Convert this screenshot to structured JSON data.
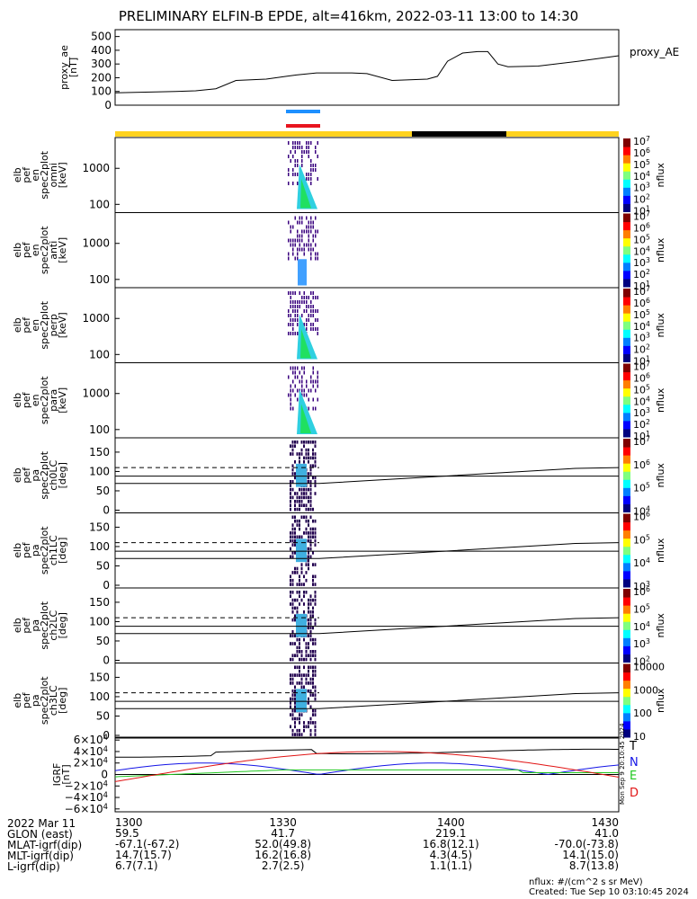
{
  "title": "PRELIMINARY ELFIN-B EPDE, alt=416km, 2022-03-11 13:00 to 14:30",
  "colors": {
    "sunlit": "#ffd21e",
    "shadow": "#000000",
    "blue_bar": "#1e90ff",
    "red_bar": "#e8141e",
    "T": "#000000",
    "N": "#1414e6",
    "E": "#20c820",
    "D": "#e11414"
  },
  "chart_data": [
    {
      "type": "line",
      "name": "proxy_ae",
      "ylabel_lines": [
        "proxy_ae",
        "[nT]"
      ],
      "series_label": "proxy_AE",
      "ylim": [
        0,
        550
      ],
      "yticks": [
        "0",
        "100",
        "200",
        "300",
        "400",
        "500"
      ],
      "x": [
        0,
        0.06,
        0.12,
        0.16,
        0.2,
        0.24,
        0.3,
        0.34,
        0.36,
        0.4,
        0.43,
        0.44,
        0.47,
        0.5,
        0.55,
        0.62,
        0.64,
        0.66,
        0.69,
        0.72,
        0.74,
        0.76,
        0.78,
        0.84,
        0.92,
        1.0
      ],
      "values": [
        90,
        95,
        100,
        105,
        120,
        180,
        190,
        210,
        220,
        235,
        235,
        235,
        235,
        230,
        180,
        190,
        210,
        320,
        380,
        390,
        390,
        300,
        280,
        285,
        320,
        360
      ]
    },
    {
      "type": "heatmap",
      "name": "spec2plot_omni",
      "ylabel_lines": [
        "elb",
        "pef",
        "en",
        "spec2plot",
        "omni",
        "[keV]"
      ],
      "yticks": [
        "100",
        "1000"
      ],
      "cbar_ticks": [
        "10",
        "10",
        "10",
        "10",
        "10",
        "10",
        "10"
      ],
      "cbar_exps": [
        "1",
        "2",
        "3",
        "4",
        "5",
        "6",
        "7"
      ],
      "cbar_label": "nflux"
    },
    {
      "type": "heatmap",
      "name": "spec2plot_anti",
      "ylabel_lines": [
        "elb",
        "pef",
        "en",
        "spec2plot",
        "anti",
        "[keV]"
      ],
      "yticks": [
        "100",
        "1000"
      ],
      "cbar_ticks": [
        "10",
        "10",
        "10",
        "10",
        "10",
        "10",
        "10"
      ],
      "cbar_exps": [
        "1",
        "2",
        "3",
        "4",
        "5",
        "6",
        "7"
      ],
      "cbar_label": "nflux"
    },
    {
      "type": "heatmap",
      "name": "spec2plot_perp",
      "ylabel_lines": [
        "elb",
        "pef",
        "en",
        "spec2plot",
        "perp",
        "[keV]"
      ],
      "yticks": [
        "100",
        "1000"
      ],
      "cbar_ticks": [
        "10",
        "10",
        "10",
        "10",
        "10",
        "10",
        "10"
      ],
      "cbar_exps": [
        "1",
        "2",
        "3",
        "4",
        "5",
        "6",
        "7"
      ],
      "cbar_label": "nflux"
    },
    {
      "type": "heatmap",
      "name": "spec2plot_para",
      "ylabel_lines": [
        "elb",
        "pef",
        "en",
        "spec2plot",
        "para",
        "[keV]"
      ],
      "yticks": [
        "100",
        "1000"
      ],
      "cbar_ticks": [
        "10",
        "10",
        "10",
        "10",
        "10",
        "10",
        "10"
      ],
      "cbar_exps": [
        "1",
        "2",
        "3",
        "4",
        "5",
        "6",
        "7"
      ],
      "cbar_label": "nflux"
    },
    {
      "type": "heatmap",
      "name": "spec2plot_ch0LC",
      "ylabel_lines": [
        "elb",
        "pef",
        "pa",
        "spec2plot",
        "ch0LC",
        "[deg]"
      ],
      "yticks": [
        "0",
        "50",
        "100",
        "150"
      ],
      "cbar_ticks": [
        "10",
        "10",
        "10",
        "10"
      ],
      "cbar_exps": [
        "4",
        "5",
        "6",
        "7"
      ],
      "cbar_label": "nflux"
    },
    {
      "type": "heatmap",
      "name": "spec2plot_ch1LC",
      "ylabel_lines": [
        "elb",
        "pef",
        "pa",
        "spec2plot",
        "ch1LC",
        "[deg]"
      ],
      "yticks": [
        "0",
        "50",
        "100",
        "150"
      ],
      "cbar_ticks": [
        "10",
        "10",
        "10",
        "10"
      ],
      "cbar_exps": [
        "3",
        "4",
        "5",
        "6"
      ],
      "cbar_label": "nflux"
    },
    {
      "type": "heatmap",
      "name": "spec2plot_ch2LC",
      "ylabel_lines": [
        "elb",
        "pef",
        "pa",
        "spec2plot",
        "ch2LC",
        "[deg]"
      ],
      "yticks": [
        "0",
        "50",
        "100",
        "150"
      ],
      "cbar_ticks": [
        "10",
        "10",
        "10",
        "10",
        "10"
      ],
      "cbar_exps": [
        "2",
        "3",
        "4",
        "5",
        "6"
      ],
      "cbar_label": "nflux"
    },
    {
      "type": "heatmap",
      "name": "spec2plot_ch3LC",
      "ylabel_lines": [
        "elb",
        "pef",
        "pa",
        "spec2plot",
        "ch3LC",
        "[deg]"
      ],
      "yticks": [
        "0",
        "50",
        "100",
        "150"
      ],
      "cbar_ticks": [
        "10",
        "100",
        "1000",
        "10000"
      ],
      "cbar_exps": [
        "",
        "",
        "",
        ""
      ],
      "cbar_label": "nflux"
    },
    {
      "type": "line",
      "name": "IGRF",
      "ylabel_lines": [
        "IGRF",
        "[nT]"
      ],
      "ylim": [
        -65000,
        65000
      ],
      "yticks": [
        "6×10",
        "4×10",
        "2×10",
        "0",
        "−2×10",
        "−4×10",
        "−6×10"
      ],
      "ytick_exps": [
        "4",
        "4",
        "4",
        "",
        "4",
        "4",
        "4"
      ],
      "legend": [
        "T",
        "N",
        "E",
        "D"
      ]
    }
  ],
  "footer": {
    "date": "2022 Mar 11",
    "rows": [
      {
        "label": "",
        "values": [
          "1300",
          "1330",
          "1400",
          "1430"
        ]
      },
      {
        "label": "GLON (east)",
        "values": [
          "59.5",
          "41.7",
          "219.1",
          "41.0"
        ]
      },
      {
        "label": "MLAT-igrf(dip)",
        "values": [
          "-67.1(-67.2)",
          "52.0(49.8)",
          "16.8(12.1)",
          "-70.0(-73.8)"
        ]
      },
      {
        "label": "MLT-igrf(dip)",
        "values": [
          "14.7(15.7)",
          "16.2(16.8)",
          "4.3(4.5)",
          "14.1(15.0)"
        ]
      },
      {
        "label": "L-igrf(dip)",
        "values": [
          "6.7(7.1)",
          "2.7(2.5)",
          "1.1(1.1)",
          "8.7(13.8)"
        ]
      }
    ],
    "units_note": "nflux: #/(cm^2 s sr MeV)",
    "created": "Created: Tue Sep 10 03:10:45 2024",
    "side_stamp": "Mon Sep 9 20:10:45 2024"
  }
}
